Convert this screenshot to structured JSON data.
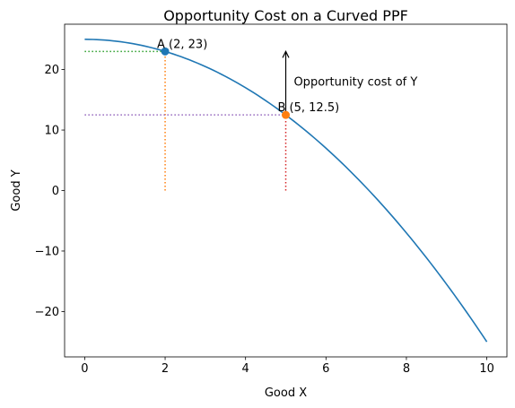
{
  "chart_data": {
    "type": "line",
    "title": "Opportunity Cost on a Curved PPF",
    "xlabel": "Good X",
    "ylabel": "Good Y",
    "xlim": [
      -0.5,
      10.5
    ],
    "ylim": [
      -27.5,
      27.5
    ],
    "xticks": [
      0,
      2,
      4,
      6,
      8,
      10
    ],
    "yticks": [
      -20,
      -10,
      0,
      10,
      20
    ],
    "grid": false,
    "curve": {
      "equation": "y = 25 - 0.5 * x^2",
      "x_range": [
        0,
        10
      ],
      "color": "#1f77b4"
    },
    "points": [
      {
        "label": "A (2, 23)",
        "x": 2,
        "y": 23,
        "color": "#1f77b4"
      },
      {
        "label": "B (5, 12.5)",
        "x": 5,
        "y": 12.5,
        "color": "#ff7f0e"
      }
    ],
    "reference_lines": [
      {
        "orientation": "horizontal",
        "y": 23,
        "x_from": 0,
        "x_to": 2,
        "style": "dotted",
        "color": "#2ca02c"
      },
      {
        "orientation": "vertical",
        "x": 2,
        "y_from": 0,
        "y_to": 23,
        "style": "dotted",
        "color": "#ff7f0e"
      },
      {
        "orientation": "horizontal",
        "y": 12.5,
        "x_from": 0,
        "x_to": 5,
        "style": "dotted",
        "color": "#9467bd"
      },
      {
        "orientation": "vertical",
        "x": 5,
        "y_from": 0,
        "y_to": 12.5,
        "style": "dotted",
        "color": "#d62728"
      }
    ],
    "annotation": {
      "text": "Opportunity cost of Y",
      "arrow_x": 5,
      "arrow_from_y": 12.5,
      "arrow_to_y": 23,
      "text_x": 5.2,
      "text_y": 18
    }
  }
}
